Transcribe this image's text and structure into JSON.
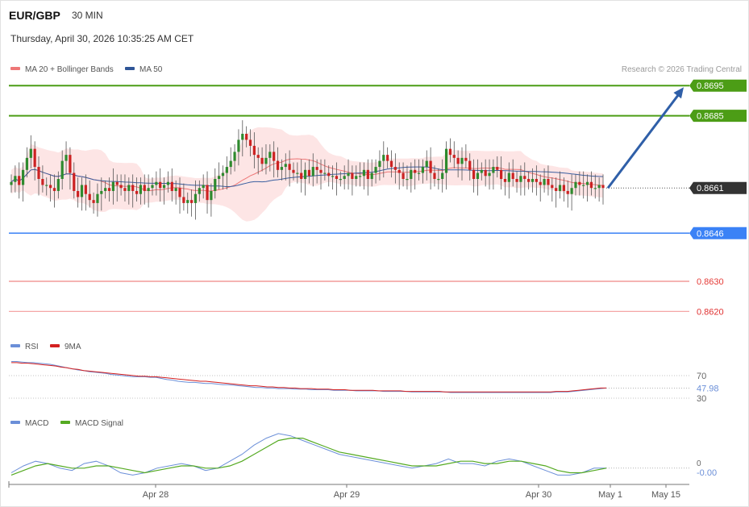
{
  "header": {
    "symbol": "EUR/GBP",
    "interval": "30 MIN",
    "datetime": "Thursday, April 30, 2026 10:35:25 AM CET"
  },
  "credit": "Research © 2026 Trading Central",
  "colors": {
    "resistance": "#4c9d16",
    "support": "#3b82f6",
    "red_level": "#e53935",
    "pink_level": "#f4a6a6",
    "current": "#333333",
    "candle_up": "#2e8a2e",
    "candle_down": "#cc2222",
    "band_fill": "#fde0e0",
    "ma20": "#ee7777",
    "ma50": "#3a5fa0",
    "rsi": "#6b8fd8",
    "rsi_ma": "#d42020",
    "macd": "#6b8fd8",
    "macd_signal": "#55aa22",
    "arrow": "#2f5fa8"
  },
  "chart_data": [
    {
      "type": "candlestick",
      "panel": "price",
      "legend": [
        {
          "name": "MA 20 + Bollinger Bands",
          "color": "#ee7777"
        },
        {
          "name": "MA 50",
          "color": "#2f5597"
        }
      ],
      "x_labels": [
        "Apr 28",
        "Apr 29",
        "Apr 30",
        "May 1",
        "May 15"
      ],
      "ylim": [
        0.8611,
        0.8698
      ],
      "levels": [
        {
          "value": "0.8695",
          "kind": "resistance",
          "style": "tag"
        },
        {
          "value": "0.8685",
          "kind": "resistance",
          "style": "tag"
        },
        {
          "value": "0.8661",
          "kind": "current",
          "style": "tag"
        },
        {
          "value": "0.8646",
          "kind": "support",
          "style": "tag"
        },
        {
          "value": "0.8630",
          "kind": "red",
          "style": "text"
        },
        {
          "value": "0.8620",
          "kind": "pink",
          "style": "text"
        }
      ],
      "forecast": {
        "from": 0.8661,
        "to": 0.8695
      },
      "close": [
        0.8663,
        0.8665,
        0.8662,
        0.8667,
        0.8671,
        0.8674,
        0.8668,
        0.8664,
        0.8662,
        0.8662,
        0.8661,
        0.866,
        0.8664,
        0.867,
        0.8672,
        0.8666,
        0.866,
        0.8658,
        0.8662,
        0.8659,
        0.8657,
        0.8656,
        0.8659,
        0.866,
        0.8661,
        0.866,
        0.8663,
        0.8662,
        0.8661,
        0.866,
        0.8662,
        0.866,
        0.8659,
        0.8662,
        0.866,
        0.8661,
        0.8662,
        0.8663,
        0.8661,
        0.8662,
        0.8663,
        0.866,
        0.8661,
        0.8658,
        0.8656,
        0.8657,
        0.8656,
        0.8659,
        0.8661,
        0.8662,
        0.8657,
        0.866,
        0.8664,
        0.8665,
        0.8666,
        0.8668,
        0.867,
        0.8673,
        0.8677,
        0.8679,
        0.8677,
        0.8675,
        0.8672,
        0.8671,
        0.8669,
        0.8671,
        0.8673,
        0.867,
        0.8667,
        0.8668,
        0.8669,
        0.8667,
        0.8666,
        0.8666,
        0.8664,
        0.8667,
        0.8665,
        0.8668,
        0.8667,
        0.8666,
        0.8666,
        0.8665,
        0.8665,
        0.8664,
        0.8664,
        0.8665,
        0.8666,
        0.8664,
        0.8665,
        0.8665,
        0.8667,
        0.8664,
        0.8666,
        0.8668,
        0.867,
        0.8672,
        0.867,
        0.8668,
        0.8667,
        0.8666,
        0.8664,
        0.8664,
        0.8667,
        0.8666,
        0.8666,
        0.8668,
        0.867,
        0.8666,
        0.8664,
        0.8664,
        0.8666,
        0.8674,
        0.8672,
        0.8671,
        0.8669,
        0.8671,
        0.867,
        0.8667,
        0.8664,
        0.8666,
        0.8667,
        0.8665,
        0.8666,
        0.8668,
        0.8667,
        0.8664,
        0.8663,
        0.8666,
        0.8664,
        0.8663,
        0.8665,
        0.8664,
        0.8663,
        0.8664,
        0.8663,
        0.8662,
        0.8664,
        0.8662,
        0.8661,
        0.866,
        0.8662,
        0.866,
        0.8659,
        0.8661,
        0.8663,
        0.8662,
        0.8662,
        0.8663,
        0.8661,
        0.8661,
        0.8662,
        0.8661
      ],
      "open": [
        0.8662,
        0.8663,
        0.8665,
        0.8662,
        0.8667,
        0.8671,
        0.8674,
        0.8668,
        0.8664,
        0.8662,
        0.8662,
        0.8661,
        0.866,
        0.8664,
        0.867,
        0.8672,
        0.8666,
        0.866,
        0.8658,
        0.8662,
        0.8659,
        0.8657,
        0.8656,
        0.8659,
        0.866,
        0.8661,
        0.866,
        0.8663,
        0.8662,
        0.8661,
        0.866,
        0.8662,
        0.866,
        0.8659,
        0.8662,
        0.866,
        0.8661,
        0.8662,
        0.8663,
        0.8661,
        0.8662,
        0.8663,
        0.866,
        0.8661,
        0.8658,
        0.8656,
        0.8657,
        0.8656,
        0.8659,
        0.8661,
        0.8662,
        0.8657,
        0.866,
        0.8664,
        0.8665,
        0.8666,
        0.8668,
        0.867,
        0.8673,
        0.8677,
        0.8679,
        0.8677,
        0.8675,
        0.8672,
        0.8671,
        0.8669,
        0.8671,
        0.8673,
        0.867,
        0.8667,
        0.8668,
        0.8669,
        0.8667,
        0.8666,
        0.8666,
        0.8664,
        0.8667,
        0.8665,
        0.8668,
        0.8667,
        0.8666,
        0.8666,
        0.8665,
        0.8665,
        0.8664,
        0.8664,
        0.8665,
        0.8666,
        0.8664,
        0.8665,
        0.8665,
        0.8667,
        0.8664,
        0.8666,
        0.8668,
        0.867,
        0.8672,
        0.867,
        0.8668,
        0.8667,
        0.8666,
        0.8664,
        0.8664,
        0.8667,
        0.8666,
        0.8666,
        0.8668,
        0.867,
        0.8666,
        0.8664,
        0.8664,
        0.8666,
        0.8674,
        0.8672,
        0.8671,
        0.8669,
        0.8671,
        0.867,
        0.8667,
        0.8664,
        0.8666,
        0.8667,
        0.8665,
        0.8666,
        0.8668,
        0.8667,
        0.8664,
        0.8663,
        0.8666,
        0.8664,
        0.8663,
        0.8665,
        0.8664,
        0.8663,
        0.8664,
        0.8663,
        0.8662,
        0.8664,
        0.8662,
        0.8661,
        0.866,
        0.8662,
        0.866,
        0.8659,
        0.8661,
        0.8663,
        0.8662,
        0.8662,
        0.8663,
        0.8661,
        0.8661,
        0.8662
      ],
      "ma20_band": {
        "mid_start": 0.8663,
        "upper_peak": 0.868,
        "lower_min": 0.8653
      }
    },
    {
      "type": "line",
      "panel": "rsi",
      "legend": [
        {
          "name": "RSI",
          "color": "#6b8fd8"
        },
        {
          "name": "9MA",
          "color": "#d42020"
        }
      ],
      "ylim": [
        0,
        100
      ],
      "y_ticks": [
        "70",
        "30"
      ],
      "last_value": "47.98",
      "rsi": [
        95,
        95,
        94,
        93,
        93,
        92,
        91,
        90,
        88,
        86,
        84,
        82,
        80,
        79,
        77,
        76,
        75,
        74,
        72,
        71,
        70,
        69,
        68,
        68,
        68,
        67,
        67,
        65,
        63,
        62,
        60,
        59,
        58,
        58,
        57,
        56,
        56,
        55,
        54,
        54,
        53,
        52,
        51,
        50,
        49,
        49,
        48,
        48,
        47,
        47,
        47,
        46,
        46,
        46,
        45,
        45,
        45,
        45,
        44,
        44,
        44,
        44,
        43,
        43,
        43,
        43,
        43,
        42,
        42,
        42,
        42,
        42,
        41,
        41,
        41,
        41,
        41,
        41,
        41,
        40,
        40,
        40,
        40,
        40,
        40,
        40,
        40,
        40,
        40,
        40,
        40,
        40,
        40,
        40,
        40,
        40,
        40,
        40,
        41,
        41,
        41,
        42,
        43,
        44,
        45,
        46,
        47,
        48
      ],
      "rsi_ma": [
        93,
        93,
        92,
        92,
        91,
        90,
        89,
        88,
        87,
        85,
        84,
        82,
        81,
        79,
        78,
        77,
        76,
        75,
        74,
        73,
        72,
        71,
        70,
        69,
        69,
        68,
        68,
        67,
        66,
        65,
        64,
        63,
        62,
        61,
        60,
        60,
        59,
        58,
        57,
        56,
        55,
        54,
        53,
        52,
        52,
        51,
        50,
        50,
        49,
        49,
        48,
        48,
        47,
        47,
        47,
        46,
        46,
        46,
        45,
        45,
        45,
        44,
        44,
        44,
        44,
        44,
        43,
        43,
        43,
        43,
        43,
        42,
        42,
        42,
        42,
        42,
        42,
        42,
        41,
        41,
        41,
        41,
        41,
        41,
        41,
        41,
        41,
        41,
        41,
        41,
        41,
        41,
        41,
        41,
        41,
        41,
        41,
        41,
        42,
        42,
        42,
        43,
        44,
        45,
        46,
        47,
        48,
        48
      ]
    },
    {
      "type": "line",
      "panel": "macd",
      "legend": [
        {
          "name": "MACD",
          "color": "#6b8fd8"
        },
        {
          "name": "MACD Signal",
          "color": "#55aa22"
        }
      ],
      "y_ticks": [
        "0"
      ],
      "last_value": "-0.00",
      "ylim": [
        -0.0006,
        0.0016
      ],
      "macd": [
        -0.0002,
        0.0001,
        0.0003,
        0.0002,
        0.0,
        -0.0001,
        0.0002,
        0.0003,
        0.0001,
        -0.0002,
        -0.0003,
        -0.0002,
        0.0,
        0.0001,
        0.0002,
        0.0001,
        -0.0001,
        0.0,
        0.0003,
        0.0006,
        0.001,
        0.0013,
        0.0015,
        0.0014,
        0.0012,
        0.001,
        0.0008,
        0.0006,
        0.0005,
        0.0004,
        0.0003,
        0.0002,
        0.0001,
        0.0,
        0.0001,
        0.0002,
        0.0004,
        0.0002,
        0.0002,
        0.0001,
        0.0003,
        0.0004,
        0.0003,
        0.0001,
        -0.0001,
        -0.0003,
        -0.0003,
        -0.0002,
        0.0,
        0.0
      ],
      "signal": [
        -0.0003,
        -0.0001,
        0.0001,
        0.0002,
        0.0001,
        0.0,
        0.0,
        0.0001,
        0.0001,
        0.0,
        -0.0001,
        -0.0002,
        -0.0001,
        0.0,
        0.0001,
        0.0001,
        0.0,
        0.0,
        0.0001,
        0.0003,
        0.0006,
        0.0009,
        0.0012,
        0.0013,
        0.0013,
        0.0011,
        0.0009,
        0.0007,
        0.0006,
        0.0005,
        0.0004,
        0.0003,
        0.0002,
        0.0001,
        0.0001,
        0.0001,
        0.0002,
        0.0003,
        0.0003,
        0.0002,
        0.0002,
        0.0003,
        0.0003,
        0.0002,
        0.0001,
        -0.0001,
        -0.0002,
        -0.0002,
        -0.0001,
        -0.0
      ]
    }
  ]
}
